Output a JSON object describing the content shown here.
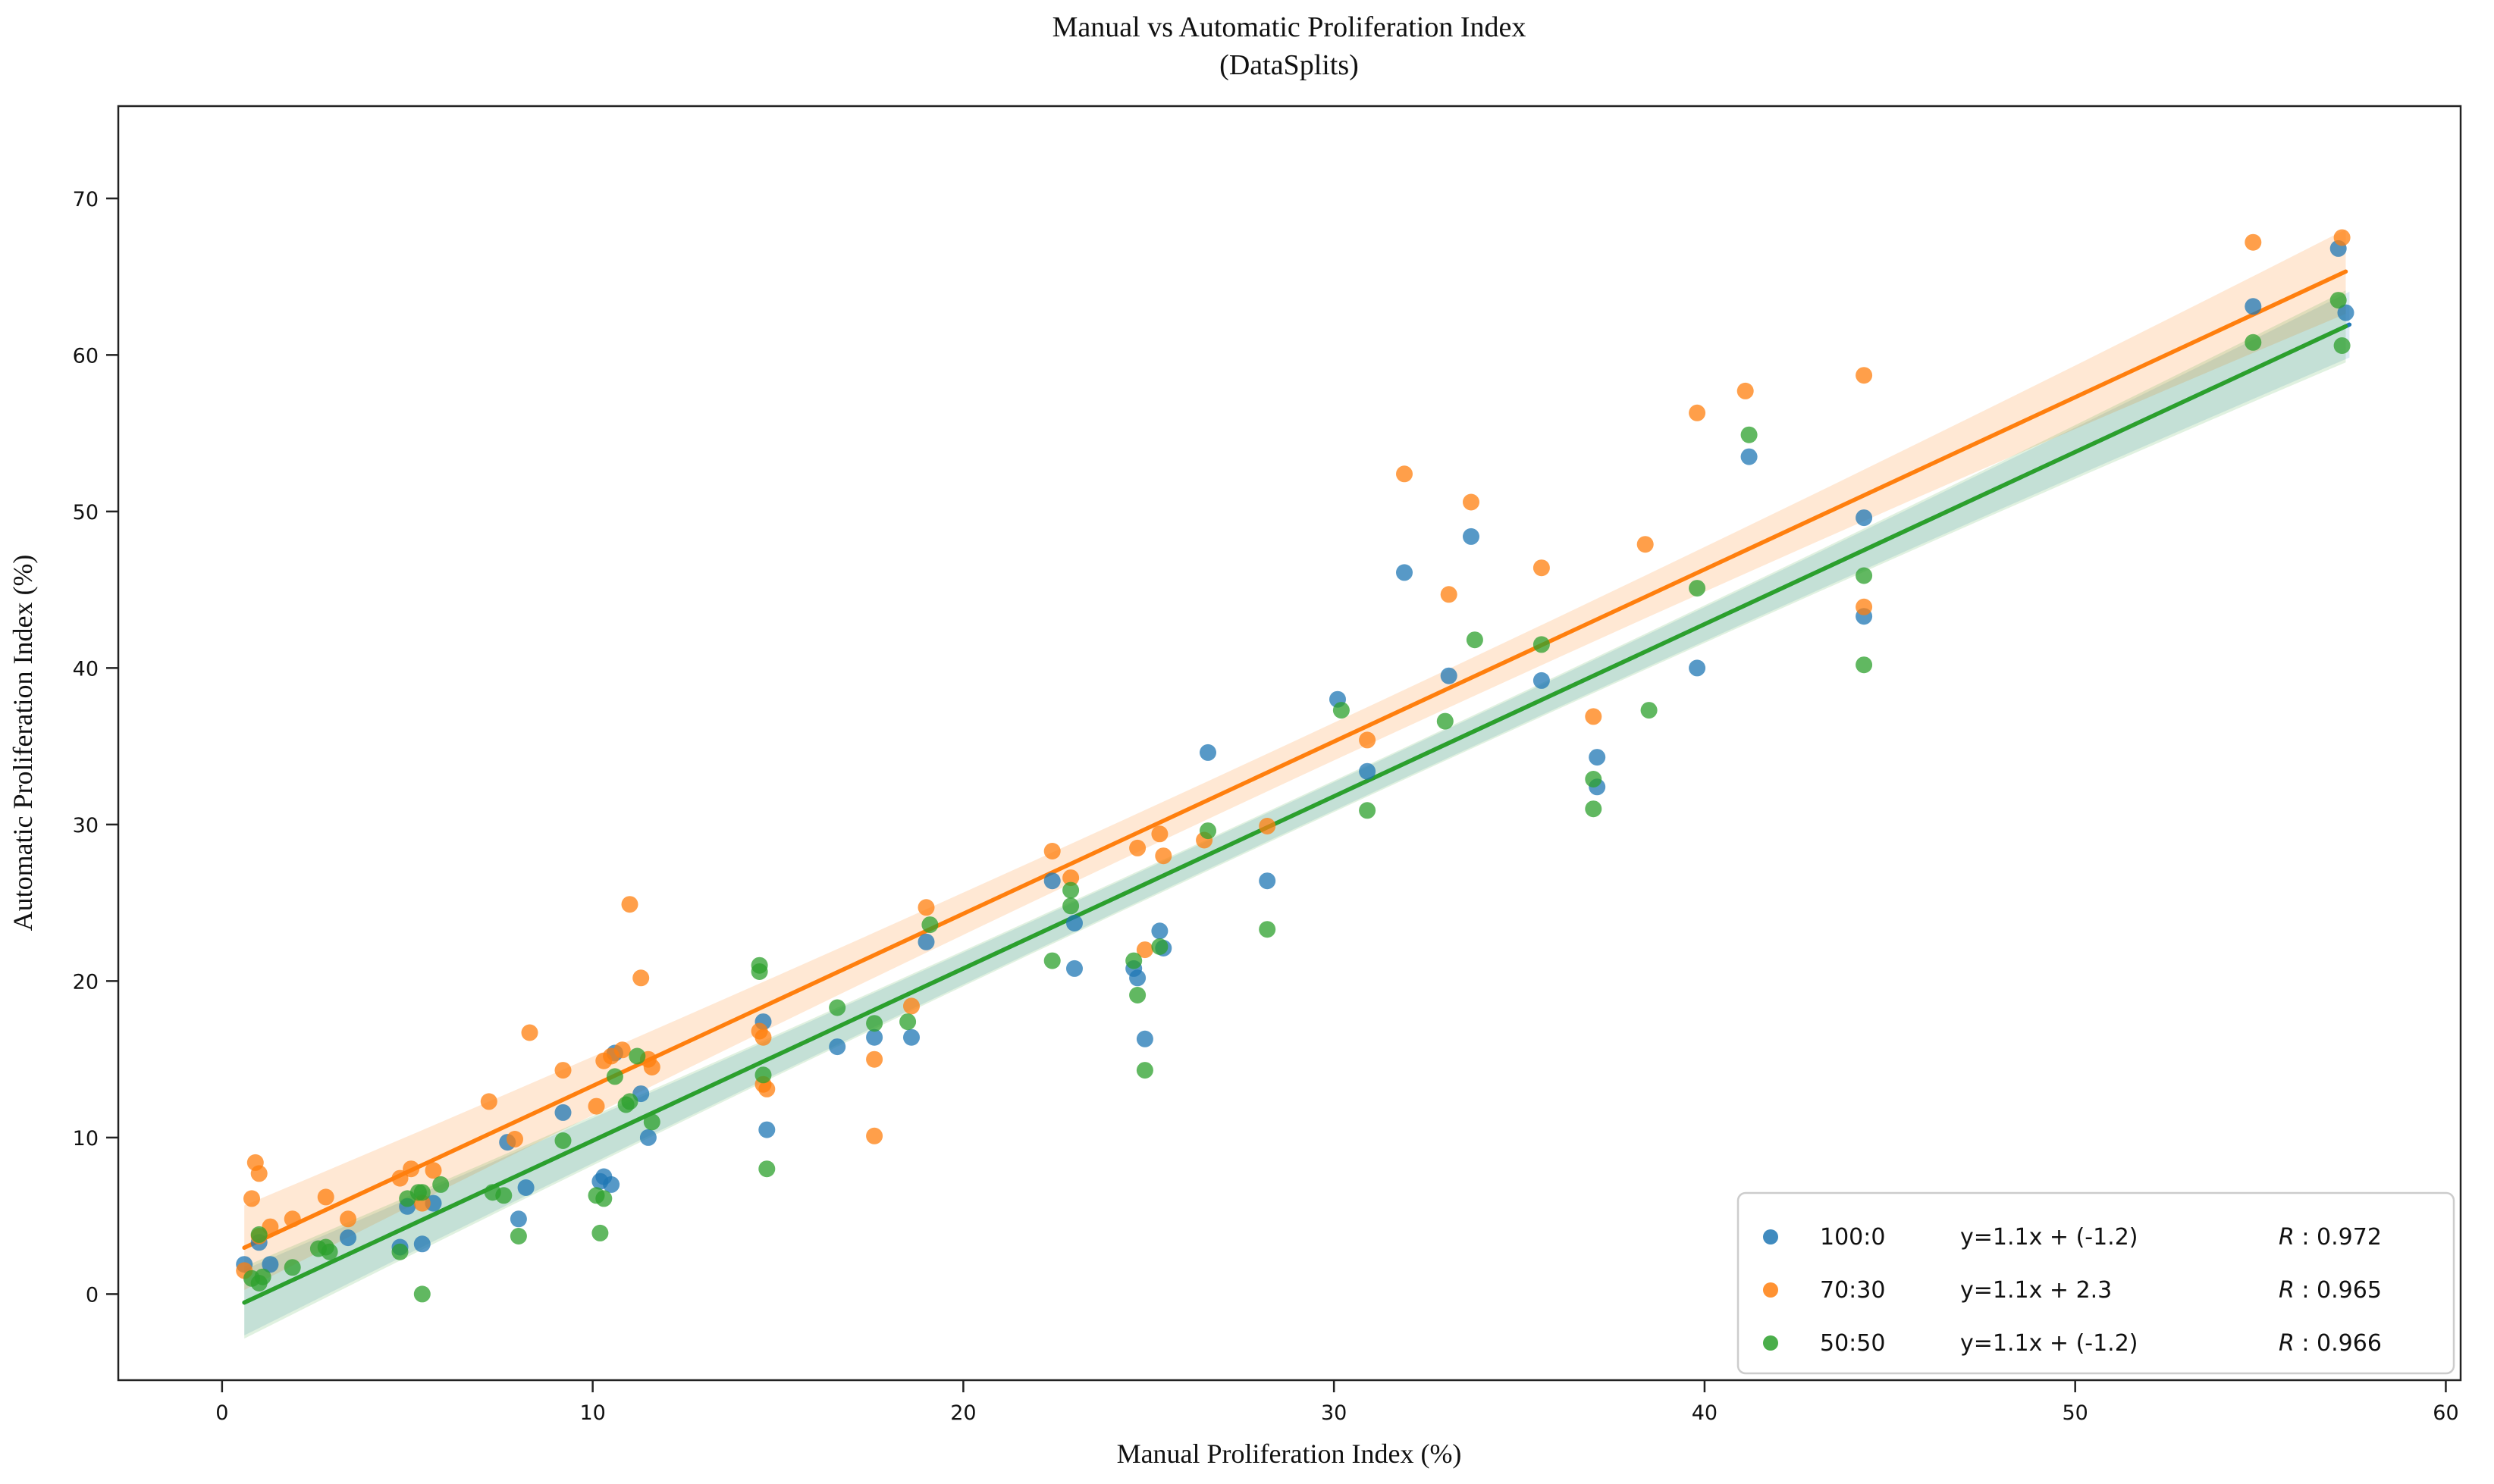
{
  "figure": {
    "background": "#ffffff",
    "spine_color": "#222222"
  },
  "chart_data": {
    "type": "scatter",
    "title": "Manual vs Automatic Proliferation Index",
    "subtitle": "(DataSplits)",
    "xlabel": "Manual Proliferation Index (%)",
    "ylabel": "Automatic Proliferation Index (%)",
    "xlim": [
      -2.8,
      60.4
    ],
    "ylim": [
      -5.5,
      75.9
    ],
    "xticks": [
      0,
      10,
      20,
      30,
      40,
      50,
      60
    ],
    "yticks": [
      0,
      10,
      20,
      30,
      40,
      50,
      60,
      70
    ],
    "grid": false,
    "legend_position": "lower right",
    "legend": {
      "r_symbol": "R",
      "r_separator": " : "
    },
    "series": [
      {
        "name": "100:0",
        "color": "#1f77b4",
        "equation": "y=1.1x + (-1.2)",
        "r_value": "0.972",
        "line": {
          "slope": 1.1,
          "intercept": -1.2,
          "x_start": 0.6,
          "x_end": 57.4
        },
        "band": {
          "mid": 0.9,
          "end": 2.1,
          "opacity": 0.15
        },
        "points": [
          [
            0.6,
            1.9
          ],
          [
            1.0,
            3.3
          ],
          [
            1.3,
            1.9
          ],
          [
            3.4,
            3.6
          ],
          [
            4.8,
            3.0
          ],
          [
            5.0,
            5.6
          ],
          [
            5.4,
            3.2
          ],
          [
            5.7,
            5.8
          ],
          [
            7.7,
            9.7
          ],
          [
            8.0,
            4.8
          ],
          [
            8.2,
            6.8
          ],
          [
            9.2,
            11.6
          ],
          [
            10.2,
            7.2
          ],
          [
            10.3,
            7.5
          ],
          [
            10.5,
            7.0
          ],
          [
            10.6,
            15.4
          ],
          [
            11.3,
            12.8
          ],
          [
            11.5,
            10.0
          ],
          [
            14.6,
            17.4
          ],
          [
            14.7,
            10.5
          ],
          [
            16.6,
            15.8
          ],
          [
            17.6,
            16.4
          ],
          [
            18.6,
            16.4
          ],
          [
            19.0,
            22.5
          ],
          [
            22.4,
            26.4
          ],
          [
            23.0,
            23.7
          ],
          [
            23.0,
            20.8
          ],
          [
            24.6,
            20.8
          ],
          [
            24.7,
            20.2
          ],
          [
            24.9,
            16.3
          ],
          [
            25.3,
            23.2
          ],
          [
            25.4,
            22.1
          ],
          [
            26.6,
            34.6
          ],
          [
            28.2,
            26.4
          ],
          [
            30.1,
            38.0
          ],
          [
            30.9,
            33.4
          ],
          [
            31.9,
            46.1
          ],
          [
            33.1,
            39.5
          ],
          [
            33.7,
            48.4
          ],
          [
            35.6,
            39.2
          ],
          [
            37.1,
            34.3
          ],
          [
            37.1,
            32.4
          ],
          [
            39.8,
            40.0
          ],
          [
            41.2,
            53.5
          ],
          [
            44.3,
            49.6
          ],
          [
            44.3,
            43.3
          ],
          [
            54.8,
            63.1
          ],
          [
            57.1,
            66.8
          ],
          [
            57.3,
            62.7
          ]
        ]
      },
      {
        "name": "70:30",
        "color": "#ff7f0e",
        "equation": "y=1.1x +  2.3",
        "r_value": "0.965",
        "line": {
          "slope": 1.1,
          "intercept": 2.3,
          "x_start": 0.6,
          "x_end": 57.3
        },
        "band": {
          "mid": 1.2,
          "end": 2.7,
          "opacity": 0.18
        },
        "points": [
          [
            0.6,
            1.5
          ],
          [
            0.8,
            6.1
          ],
          [
            0.9,
            8.4
          ],
          [
            1.0,
            7.7
          ],
          [
            1.0,
            3.7
          ],
          [
            1.3,
            4.3
          ],
          [
            1.9,
            4.8
          ],
          [
            2.8,
            6.2
          ],
          [
            3.4,
            4.8
          ],
          [
            4.8,
            7.4
          ],
          [
            5.1,
            8.0
          ],
          [
            5.4,
            5.8
          ],
          [
            5.7,
            7.9
          ],
          [
            7.2,
            12.3
          ],
          [
            7.9,
            9.9
          ],
          [
            8.3,
            16.7
          ],
          [
            9.2,
            14.3
          ],
          [
            10.1,
            12.0
          ],
          [
            10.3,
            14.9
          ],
          [
            10.5,
            15.2
          ],
          [
            10.8,
            15.6
          ],
          [
            11.0,
            24.9
          ],
          [
            11.3,
            20.2
          ],
          [
            11.5,
            15.0
          ],
          [
            11.6,
            14.5
          ],
          [
            14.5,
            16.8
          ],
          [
            14.6,
            16.4
          ],
          [
            14.6,
            13.4
          ],
          [
            14.7,
            13.1
          ],
          [
            17.6,
            15.0
          ],
          [
            17.6,
            10.1
          ],
          [
            18.6,
            18.4
          ],
          [
            19.0,
            24.7
          ],
          [
            22.4,
            28.3
          ],
          [
            22.9,
            26.6
          ],
          [
            24.7,
            28.5
          ],
          [
            24.9,
            22.0
          ],
          [
            25.3,
            29.4
          ],
          [
            25.4,
            28.0
          ],
          [
            26.5,
            29.0
          ],
          [
            28.2,
            29.9
          ],
          [
            30.9,
            35.4
          ],
          [
            31.9,
            52.4
          ],
          [
            33.1,
            44.7
          ],
          [
            33.7,
            50.6
          ],
          [
            35.6,
            46.4
          ],
          [
            37.0,
            36.9
          ],
          [
            38.4,
            47.9
          ],
          [
            39.8,
            56.3
          ],
          [
            41.1,
            57.7
          ],
          [
            44.3,
            58.7
          ],
          [
            44.3,
            43.9
          ],
          [
            54.8,
            67.2
          ],
          [
            57.2,
            67.5
          ]
        ]
      },
      {
        "name": "50:50",
        "color": "#2ca02c",
        "equation": "y=1.1x + (-1.2)",
        "r_value": "0.966",
        "line": {
          "slope": 1.1,
          "intercept": -1.2,
          "x_start": 0.6,
          "x_end": 57.3
        },
        "band": {
          "mid": 1.0,
          "end": 2.3,
          "opacity": 0.15
        },
        "points": [
          [
            0.8,
            1.0
          ],
          [
            1.0,
            0.7
          ],
          [
            1.0,
            3.8
          ],
          [
            1.1,
            1.1
          ],
          [
            1.9,
            1.7
          ],
          [
            2.6,
            2.9
          ],
          [
            2.8,
            3.0
          ],
          [
            2.9,
            2.7
          ],
          [
            4.8,
            2.7
          ],
          [
            5.0,
            6.1
          ],
          [
            5.3,
            6.5
          ],
          [
            5.4,
            6.5
          ],
          [
            5.4,
            0.0
          ],
          [
            5.9,
            7.0
          ],
          [
            7.3,
            6.5
          ],
          [
            7.6,
            6.3
          ],
          [
            8.0,
            3.7
          ],
          [
            9.2,
            9.8
          ],
          [
            10.1,
            6.3
          ],
          [
            10.2,
            3.9
          ],
          [
            10.3,
            6.1
          ],
          [
            10.6,
            13.9
          ],
          [
            10.9,
            12.1
          ],
          [
            11.0,
            12.3
          ],
          [
            11.2,
            15.2
          ],
          [
            11.6,
            11.0
          ],
          [
            14.5,
            21.0
          ],
          [
            14.5,
            20.6
          ],
          [
            14.6,
            14.0
          ],
          [
            14.7,
            8.0
          ],
          [
            16.6,
            18.3
          ],
          [
            17.6,
            17.3
          ],
          [
            18.5,
            17.4
          ],
          [
            19.1,
            23.6
          ],
          [
            22.4,
            21.3
          ],
          [
            22.9,
            25.8
          ],
          [
            22.9,
            24.8
          ],
          [
            24.6,
            21.3
          ],
          [
            24.7,
            19.1
          ],
          [
            24.9,
            14.3
          ],
          [
            25.3,
            22.2
          ],
          [
            26.6,
            29.6
          ],
          [
            28.2,
            23.3
          ],
          [
            30.2,
            37.3
          ],
          [
            30.9,
            30.9
          ],
          [
            33.0,
            36.6
          ],
          [
            33.8,
            41.8
          ],
          [
            35.6,
            41.5
          ],
          [
            37.0,
            32.9
          ],
          [
            37.0,
            31.0
          ],
          [
            38.5,
            37.3
          ],
          [
            39.8,
            45.1
          ],
          [
            41.2,
            54.9
          ],
          [
            44.3,
            45.9
          ],
          [
            44.3,
            40.2
          ],
          [
            54.8,
            60.8
          ],
          [
            57.1,
            63.5
          ],
          [
            57.2,
            60.6
          ]
        ]
      }
    ]
  }
}
